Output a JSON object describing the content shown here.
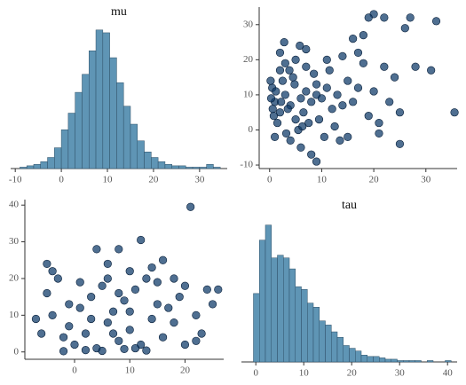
{
  "chart_data": [
    {
      "type": "histogram",
      "title": "mu",
      "color": "#5f95b5",
      "bins": [
        -9,
        -7.5,
        -6,
        -4.5,
        -3,
        -1.5,
        0,
        1.5,
        3,
        4.5,
        6,
        7.5,
        9,
        10.5,
        12,
        13.5,
        15,
        16.5,
        18,
        19.5,
        21,
        22.5,
        24,
        25.5,
        27,
        28.5,
        30,
        31.5,
        33,
        34.5
      ],
      "values": [
        1,
        2,
        3,
        5,
        8,
        15,
        28,
        40,
        55,
        68,
        85,
        100,
        98,
        80,
        62,
        45,
        32,
        20,
        12,
        8,
        5,
        3,
        2,
        2,
        1,
        1,
        1,
        3,
        1
      ],
      "xlim": [
        -11,
        36
      ],
      "xticks": [
        -10,
        0,
        10,
        20,
        30
      ],
      "ylim": [
        0,
        105
      ]
    },
    {
      "type": "scatter",
      "color": "#0b3766",
      "x": [
        1,
        2,
        3,
        0.5,
        4,
        5,
        6,
        2.5,
        1.5,
        7,
        3.5,
        8,
        0.8,
        9,
        4.5,
        5.5,
        2,
        6.5,
        10,
        1,
        3,
        7.5,
        11,
        0.3,
        12,
        4,
        8.5,
        2,
        13,
        5,
        6,
        14,
        1.2,
        9.5,
        15,
        3.2,
        16,
        7,
        10.5,
        17,
        0.6,
        18,
        4.8,
        12.5,
        19,
        2.8,
        11.5,
        20,
        8,
        21,
        5.8,
        22,
        13.5,
        23,
        17,
        24,
        9,
        25,
        18,
        20,
        26,
        19,
        27,
        22,
        16,
        32,
        28,
        31,
        35.5,
        25,
        15,
        21,
        14,
        11,
        7,
        3.8,
        6.3,
        2.2,
        9,
        0.2
      ],
      "y": [
        8,
        5,
        10,
        12,
        7,
        3,
        9,
        14,
        2,
        11,
        6,
        8,
        4,
        13,
        15,
        0,
        17,
        5,
        9,
        -2,
        19,
        2,
        12,
        9,
        6,
        -3,
        16,
        22,
        10,
        20,
        -5,
        7,
        11,
        3,
        14,
        -1,
        8,
        18,
        -2,
        12,
        6,
        19,
        13,
        1,
        4,
        25,
        17,
        11,
        -7,
        -1,
        24,
        18,
        -3,
        8,
        22,
        15,
        -9,
        -4,
        27,
        33,
        29,
        32,
        32,
        32,
        26,
        31,
        18,
        17,
        5,
        5,
        -2,
        2,
        21,
        20,
        23,
        17,
        1,
        8,
        10,
        14
      ],
      "xlim": [
        -2,
        36
      ],
      "xticks": [
        0,
        10,
        20,
        30
      ],
      "ylim": [
        -11,
        35
      ],
      "yticks": [
        -10,
        0,
        10,
        20,
        30
      ]
    },
    {
      "type": "scatter",
      "color": "#0b3766",
      "x": [
        0,
        2,
        4,
        6,
        8,
        10,
        12,
        14,
        -2,
        -4,
        1,
        3,
        5,
        7,
        9,
        11,
        13,
        15,
        -1,
        -5,
        -3,
        -6,
        -7,
        16,
        18,
        20,
        22,
        24,
        25,
        26,
        21,
        12,
        8,
        4,
        -5,
        -4,
        16,
        6,
        10,
        14,
        2,
        5,
        9,
        11,
        13,
        -2,
        7,
        3,
        17,
        19,
        23,
        22,
        -1,
        1,
        15,
        10,
        8,
        6,
        18,
        20
      ],
      "y": [
        2,
        5,
        1,
        8,
        3,
        6,
        2,
        9,
        4,
        10,
        12,
        15,
        18,
        11,
        14,
        17,
        20,
        13,
        7,
        16,
        20,
        5,
        9,
        4,
        8,
        2,
        10,
        17,
        13,
        17,
        39.5,
        30.5,
        28,
        28,
        24,
        22,
        25,
        24,
        22,
        23,
        0.5,
        0.3,
        0.8,
        1,
        0.4,
        0.2,
        5,
        9,
        12,
        15,
        5,
        3,
        13,
        19,
        19,
        11,
        16,
        20,
        20,
        18
      ],
      "xlim": [
        -9,
        27
      ],
      "xticks": [
        0,
        10,
        20
      ],
      "ylim": [
        -2,
        41.5
      ],
      "yticks": [
        0,
        10,
        20,
        30,
        40
      ]
    },
    {
      "type": "histogram",
      "title": "tau",
      "color": "#5f95b5",
      "bins": [
        -0.5,
        0.75,
        2,
        3.25,
        4.5,
        5.75,
        7,
        8.25,
        9.5,
        10.75,
        12,
        13.25,
        14.5,
        15.75,
        17,
        18.25,
        19.5,
        20.75,
        22,
        23.25,
        24.5,
        25.75,
        27,
        28.25,
        29.5,
        30.75,
        32,
        33.25,
        34.5,
        35.75,
        37,
        38.25,
        39.5,
        40.75
      ],
      "values": [
        50,
        89,
        100,
        76,
        78,
        76,
        68,
        55,
        53,
        43,
        40,
        30,
        27,
        22,
        18,
        12,
        10,
        8,
        5,
        4,
        4,
        3,
        2,
        2,
        1,
        1,
        1,
        1,
        0,
        1,
        0,
        0,
        1
      ],
      "xlim": [
        -3,
        42
      ],
      "xticks": [
        0,
        10,
        20,
        30,
        40
      ],
      "ylim": [
        0,
        105
      ]
    }
  ]
}
